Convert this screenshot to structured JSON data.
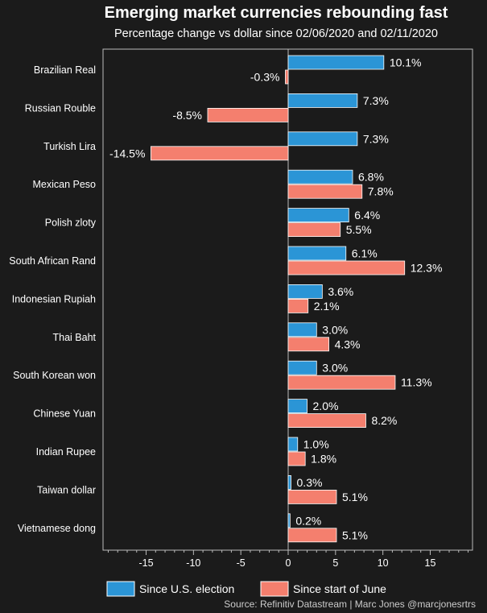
{
  "chart_data": {
    "type": "bar",
    "orientation": "horizontal",
    "title": "Emerging market currencies rebounding fast",
    "subtitle": "Percentage change vs dollar since 02/06/2020 and 02/11/2020",
    "categories": [
      "Brazilian Real",
      "Russian Rouble",
      "Turkish Lira",
      "Mexican Peso",
      "Polish zloty",
      "South African Rand",
      "Indonesian Rupiah",
      "Thai Baht",
      "South Korean won",
      "Chinese Yuan",
      "Indian Rupee",
      "Taiwan dollar",
      "Vietnamese dong"
    ],
    "series": [
      {
        "name": "Since U.S. election",
        "color": "#2b95d6",
        "values": [
          10.1,
          7.3,
          7.3,
          6.8,
          6.4,
          6.1,
          3.6,
          3.0,
          3.0,
          2.0,
          1.0,
          0.3,
          0.2
        ],
        "labels": [
          "10.1%",
          "7.3%",
          "7.3%",
          "6.8%",
          "6.4%",
          "6.1%",
          "3.6%",
          "3.0%",
          "3.0%",
          "2.0%",
          "1.0%",
          "0.3%",
          "0.2%"
        ]
      },
      {
        "name": "Since start of June",
        "color": "#f47f6e",
        "values": [
          -0.3,
          -8.5,
          -14.5,
          7.8,
          5.5,
          12.3,
          2.1,
          4.3,
          11.3,
          8.2,
          1.8,
          5.1,
          5.1
        ],
        "labels": [
          "-0.3%",
          "-8.5%",
          "-14.5%",
          "7.8%",
          "5.5%",
          "12.3%",
          "2.1%",
          "4.3%",
          "11.3%",
          "8.2%",
          "1.8%",
          "5.1%",
          "5.1%"
        ]
      }
    ],
    "xlim": [
      -19.5,
      19.5
    ],
    "xticks": [
      -15,
      -10,
      -5,
      0,
      5,
      10,
      15
    ],
    "xticklabels": [
      "-15",
      "-10",
      "-5",
      "0",
      "5",
      "10",
      "15"
    ],
    "xlabel": "",
    "ylabel": "",
    "grid": false,
    "legend_position": "bottom-center",
    "source": "Source: Refinitiv Datastream | Marc Jones @marcjonesrtrs"
  }
}
